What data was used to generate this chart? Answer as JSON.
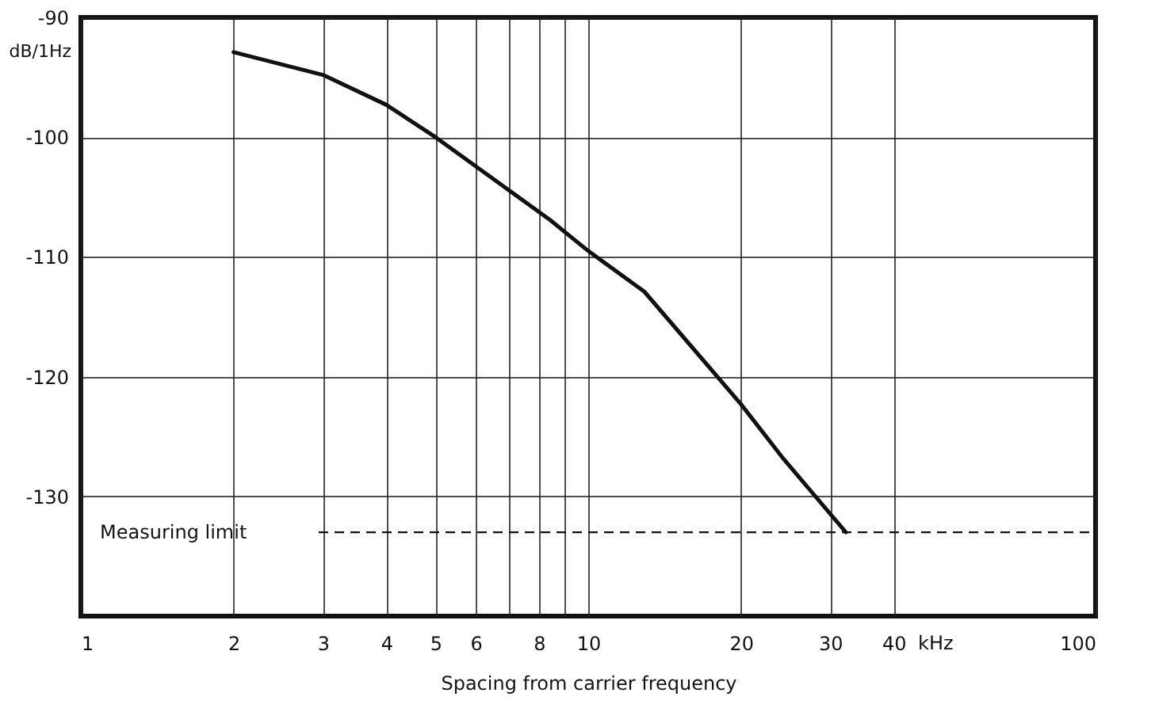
{
  "chart_data": {
    "type": "line",
    "xlabel": "Spacing from carrier frequency",
    "ylabel": "dB/1Hz",
    "log": "x",
    "x": [
      2,
      3,
      4,
      5,
      8.4,
      10,
      12.9,
      20,
      24.3,
      32.2
    ],
    "series": [
      {
        "color": "#111111",
        "values": [
          -92.9,
          -94.8,
          -97.3,
          -100,
          -106.9,
          -109.5,
          -112.9,
          -122.3,
          -126.9,
          -133
        ]
      }
    ],
    "xlim": [
      1,
      100
    ],
    "xticks": [
      1,
      2,
      3,
      4,
      5,
      6,
      {
        "value": 7,
        "label": null
      },
      8,
      {
        "value": 9,
        "label": null
      },
      10,
      20,
      30,
      40,
      100
    ],
    "ylim": [
      -140,
      -90
    ],
    "yticks": [
      -90,
      -100,
      -110,
      -120,
      -130
    ],
    "ref_lines": [
      {
        "axis": "y",
        "value": -133,
        "label": "Measuring limit",
        "line_style": "dashed",
        "color": "#111111"
      }
    ],
    "annotations": [
      "kHz"
    ],
    "grid": true,
    "marker": "none",
    "line_style": "solid",
    "legend": false
  }
}
